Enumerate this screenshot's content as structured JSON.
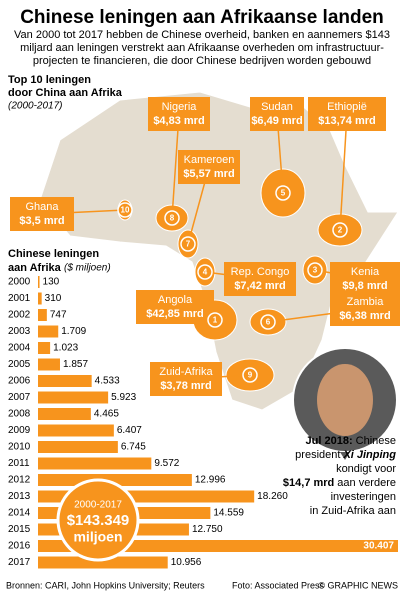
{
  "header": {
    "title": "Chinese leningen aan Afrikaanse landen",
    "intro": [
      "Van 2000 tot 2017 hebben de Chinese overheid, banken en aannemers $143",
      "miljard aan leningen verstrekt aan Afrikaanse overheden om infrastructuur-",
      "projecten te financieren, die door Chinese bedrijven worden gebouwd"
    ]
  },
  "map": {
    "title": [
      "Top 10 leningen",
      "door China aan Afrika"
    ],
    "period": "(2000-2017)",
    "loans": [
      {
        "rank": 1,
        "country": "Angola",
        "amount": "$42,85 mrd"
      },
      {
        "rank": 2,
        "country": "Ethiopië",
        "amount": "$13,74 mrd"
      },
      {
        "rank": 3,
        "country": "Kenia",
        "amount": "$9,8 mrd"
      },
      {
        "rank": 4,
        "country": "Rep. Congo",
        "amount": "$7,42 mrd"
      },
      {
        "rank": 5,
        "country": "Sudan",
        "amount": "$6,49 mrd"
      },
      {
        "rank": 6,
        "country": "Zambia",
        "amount": "$6,38 mrd"
      },
      {
        "rank": 7,
        "country": "Kameroen",
        "amount": "$5,57 mrd"
      },
      {
        "rank": 8,
        "country": "Nigeria",
        "amount": "$4,83 mrd"
      },
      {
        "rank": 9,
        "country": "Zuid-Afrika",
        "amount": "$3,78 mrd"
      },
      {
        "rank": 10,
        "country": "Ghana",
        "amount": "$3,5 mrd"
      }
    ]
  },
  "chart_data": {
    "type": "bar",
    "orientation": "horizontal",
    "title": [
      "Chinese leningen",
      "aan Afrika"
    ],
    "subtitle": "($ miljoen)",
    "categories": [
      "2000",
      "2001",
      "2002",
      "2003",
      "2004",
      "2005",
      "2006",
      "2007",
      "2008",
      "2009",
      "2010",
      "2011",
      "2012",
      "2013",
      "2014",
      "2015",
      "2016",
      "2017"
    ],
    "values": [
      130,
      310,
      747,
      1709,
      1023,
      1857,
      4533,
      5923,
      4465,
      6407,
      6745,
      9572,
      12996,
      18260,
      14559,
      12750,
      30407,
      10956
    ],
    "value_labels": [
      "130",
      "310",
      "747",
      "1.709",
      "1.023",
      "1.857",
      "4.533",
      "5.923",
      "4.465",
      "6.407",
      "6.745",
      "9.572",
      "12.996",
      "18.260",
      "14.559",
      "12.750",
      "30.407",
      "10.956"
    ],
    "color": "#f7941d"
  },
  "total": {
    "period": "2000-2017",
    "amount": "$143.349",
    "unit": "miljoen"
  },
  "quote": {
    "lines": [
      [
        "Jul 2018:",
        "Chinese"
      ],
      [
        "president",
        "Xi Jinping"
      ],
      [
        "kondigt voor"
      ],
      [
        "$14,7 mrd",
        "aan verdere"
      ],
      [
        "investeringen"
      ],
      [
        "in Zuid-Afrika aan"
      ]
    ]
  },
  "footer": {
    "sources": "Bronnen: CARI, John Hopkins University; Reuters",
    "photo": "Foto: Associated Press",
    "credit": "© GRAPHIC NEWS"
  }
}
